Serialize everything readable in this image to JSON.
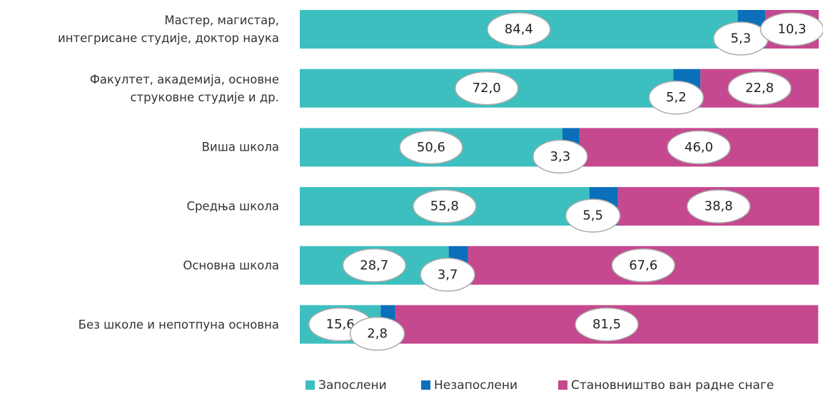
{
  "chart_data": {
    "type": "bar",
    "orientation": "horizontal",
    "stacked": true,
    "categories": [
      "Мастер, магистар,\nинтегрисане студије,  доктор наука",
      "Факултет, академија, основне\nструковне студије и др.",
      "Виша школа",
      "Средња школа",
      "Основна школа",
      "Без школе и непотпуна основна"
    ],
    "xlim": [
      0,
      100
    ],
    "legend": "bottom",
    "series": [
      {
        "name": "Запослени",
        "color": "#3dbfc0",
        "values": [
          84.4,
          72.0,
          50.6,
          55.8,
          28.7,
          15.6
        ],
        "value_labels": [
          "84,4",
          "72,0",
          "50,6",
          "55,8",
          "28,7",
          "15,6"
        ]
      },
      {
        "name": "Незапослени",
        "color": "#0b6fba",
        "values": [
          5.3,
          5.2,
          3.3,
          5.5,
          3.7,
          2.8
        ],
        "value_labels": [
          "5,3",
          "5,2",
          "3,3",
          "5,5",
          "3,7",
          "2,8"
        ]
      },
      {
        "name": "Становништво ван радне снаге",
        "color": "#c6488f",
        "values": [
          10.3,
          22.8,
          46.0,
          38.8,
          67.6,
          81.5
        ],
        "value_labels": [
          "10,3",
          "22,8",
          "46,0",
          "38,8",
          "67,6",
          "81,5"
        ]
      }
    ]
  }
}
